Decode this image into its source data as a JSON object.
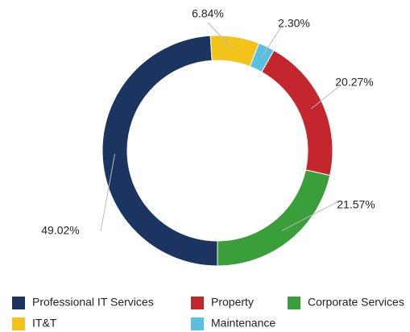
{
  "chart_data": {
    "type": "pie",
    "categories": [
      "Professional IT Services",
      "IT&T",
      "Maintenance",
      "Property",
      "Corporate Services"
    ],
    "values": [
      49.02,
      6.84,
      2.3,
      20.27,
      21.57
    ],
    "value_labels": [
      "49.02%",
      "6.84%",
      "2.30%",
      "20.27%",
      "21.57%"
    ],
    "colors": [
      "#1c3560",
      "#f2c318",
      "#5bbfe0",
      "#c4262e",
      "#3a9e3a"
    ]
  }
}
